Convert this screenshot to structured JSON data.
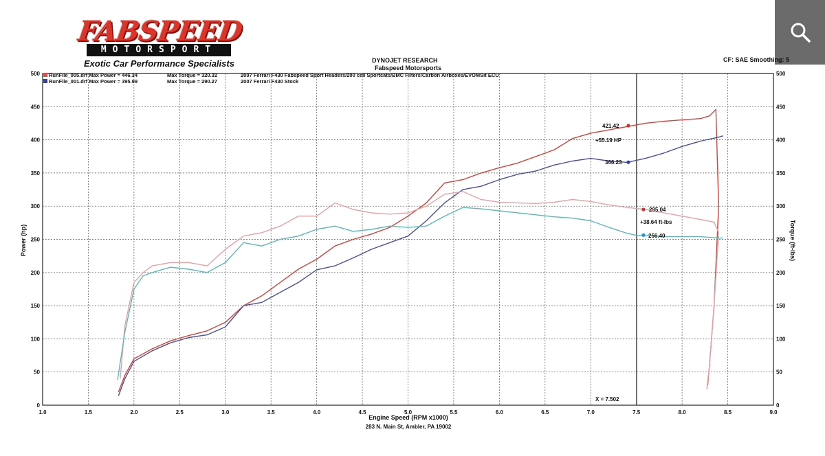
{
  "branding": {
    "logo_main": "FABSPEED",
    "logo_sub": "MOTORSPORT",
    "tagline": "Exotic Car Performance Specialists"
  },
  "header": {
    "title1": "DYNOJET RESEARCH",
    "title2": "Fabspeed Motorsports",
    "cf_text": "CF: SAE Smoothing: 5",
    "footer": "283 N. Main St, Ambler, PA 19002"
  },
  "legend": [
    {
      "file": "RunFile_005.drf Max Power = 446.34",
      "torque": "Max Torque = 320.32",
      "desc": "2007 Ferrari F430 Fabspeed Sport Headers/200 cell Sportcats/BMC Filters/Carbon Airboxes/EVOMSit ECU",
      "color": "#d9534f"
    },
    {
      "file": "RunFile_001.drf Max Power = 395.99",
      "torque": "Max Torque = 290.27",
      "desc": "2007 Ferrari F430 Stock",
      "color": "#3a3f9a"
    }
  ],
  "annotations": {
    "hp_mod": "421.42",
    "hp_stock": "366.23",
    "hp_gain": "+55.19 HP",
    "tq_mod": "295.04",
    "tq_stock": "256.40",
    "tq_gain": "+38.64 ft-lbs",
    "cursor": "X = 7.502"
  },
  "colors": {
    "hp_mod": "#c9473f",
    "hp_stock": "#4a4f9a",
    "tq_mod": "#e3a3a6",
    "tq_stock": "#5fb6b8",
    "marker_red": "#d93030",
    "marker_blue": "#2a3fb0",
    "marker_cyan": "#2a8fd0"
  },
  "icons": {
    "search": "search-icon"
  },
  "chart_data": {
    "type": "line",
    "xlabel": "Engine Speed (RPM x1000)",
    "ylabel": "Power (hp)",
    "ylabel_right": "Torque (ft-lbs)",
    "xlim": [
      1.0,
      9.0
    ],
    "ylim": [
      0,
      500
    ],
    "xticks": [
      "1.0",
      "1.5",
      "2.0",
      "2.5",
      "3.0",
      "3.5",
      "4.0",
      "4.5",
      "5.0",
      "5.5",
      "6.0",
      "6.5",
      "7.0",
      "7.5",
      "8.0",
      "8.5",
      "9.0"
    ],
    "yticks": [
      "0",
      "50",
      "100",
      "150",
      "200",
      "250",
      "300",
      "350",
      "400",
      "450",
      "500"
    ],
    "cursor_x": 7.502,
    "grid": true,
    "series": [
      {
        "key": "hp_mod",
        "x": [
          1.83,
          1.9,
          2.0,
          2.2,
          2.4,
          2.6,
          2.8,
          3.0,
          3.2,
          3.4,
          3.6,
          3.8,
          4.0,
          4.2,
          4.4,
          4.6,
          4.8,
          5.0,
          5.2,
          5.4,
          5.6,
          5.8,
          6.0,
          6.2,
          6.4,
          6.6,
          6.8,
          7.0,
          7.2,
          7.4,
          7.6,
          7.8,
          8.0,
          8.2,
          8.3,
          8.37,
          8.4,
          8.35,
          8.3,
          8.28
        ],
        "y": [
          20,
          45,
          70,
          85,
          97,
          105,
          112,
          125,
          150,
          165,
          185,
          205,
          220,
          240,
          250,
          258,
          268,
          285,
          305,
          335,
          340,
          350,
          358,
          365,
          375,
          385,
          402,
          410,
          415,
          420,
          425,
          428,
          430,
          432,
          436,
          446,
          300,
          150,
          60,
          30
        ]
      },
      {
        "key": "hp_stock",
        "x": [
          1.83,
          1.9,
          2.0,
          2.2,
          2.4,
          2.6,
          2.8,
          3.0,
          3.2,
          3.4,
          3.6,
          3.8,
          4.0,
          4.2,
          4.4,
          4.6,
          4.8,
          5.0,
          5.2,
          5.4,
          5.6,
          5.8,
          6.0,
          6.2,
          6.4,
          6.6,
          6.8,
          7.0,
          7.2,
          7.4,
          7.6,
          7.8,
          8.0,
          8.2,
          8.4,
          8.45
        ],
        "y": [
          14,
          40,
          66,
          82,
          94,
          102,
          106,
          118,
          150,
          155,
          170,
          185,
          204,
          210,
          222,
          235,
          245,
          255,
          278,
          305,
          325,
          330,
          340,
          348,
          353,
          362,
          368,
          372,
          368,
          366,
          372,
          380,
          390,
          398,
          404,
          406
        ]
      },
      {
        "key": "tq_mod",
        "x": [
          1.85,
          1.9,
          2.0,
          2.1,
          2.2,
          2.4,
          2.6,
          2.8,
          3.0,
          3.2,
          3.4,
          3.6,
          3.8,
          4.0,
          4.2,
          4.4,
          4.6,
          4.8,
          5.0,
          5.2,
          5.4,
          5.6,
          5.8,
          6.0,
          6.2,
          6.4,
          6.6,
          6.8,
          7.0,
          7.2,
          7.4,
          7.6,
          7.8,
          8.0,
          8.2,
          8.35,
          8.4,
          8.35,
          8.3,
          8.27
        ],
        "y": [
          40,
          120,
          185,
          200,
          210,
          215,
          215,
          210,
          235,
          255,
          260,
          270,
          285,
          285,
          305,
          295,
          290,
          288,
          290,
          300,
          318,
          322,
          310,
          306,
          305,
          304,
          306,
          310,
          307,
          302,
          298,
          295,
          290,
          285,
          280,
          276,
          260,
          150,
          60,
          24
        ]
      },
      {
        "key": "tq_stock",
        "x": [
          1.82,
          1.9,
          2.0,
          2.1,
          2.2,
          2.4,
          2.6,
          2.8,
          3.0,
          3.2,
          3.4,
          3.6,
          3.8,
          4.0,
          4.2,
          4.4,
          4.6,
          4.8,
          5.0,
          5.2,
          5.4,
          5.6,
          5.8,
          6.0,
          6.2,
          6.4,
          6.6,
          6.8,
          7.0,
          7.2,
          7.4,
          7.5,
          7.6,
          7.8,
          8.0,
          8.2,
          8.4,
          8.45
        ],
        "y": [
          38,
          110,
          175,
          195,
          200,
          208,
          205,
          200,
          215,
          245,
          240,
          250,
          255,
          265,
          270,
          262,
          265,
          270,
          268,
          270,
          285,
          298,
          296,
          293,
          290,
          287,
          284,
          282,
          278,
          268,
          259,
          256,
          256,
          254,
          254,
          254,
          252,
          252
        ]
      }
    ]
  }
}
